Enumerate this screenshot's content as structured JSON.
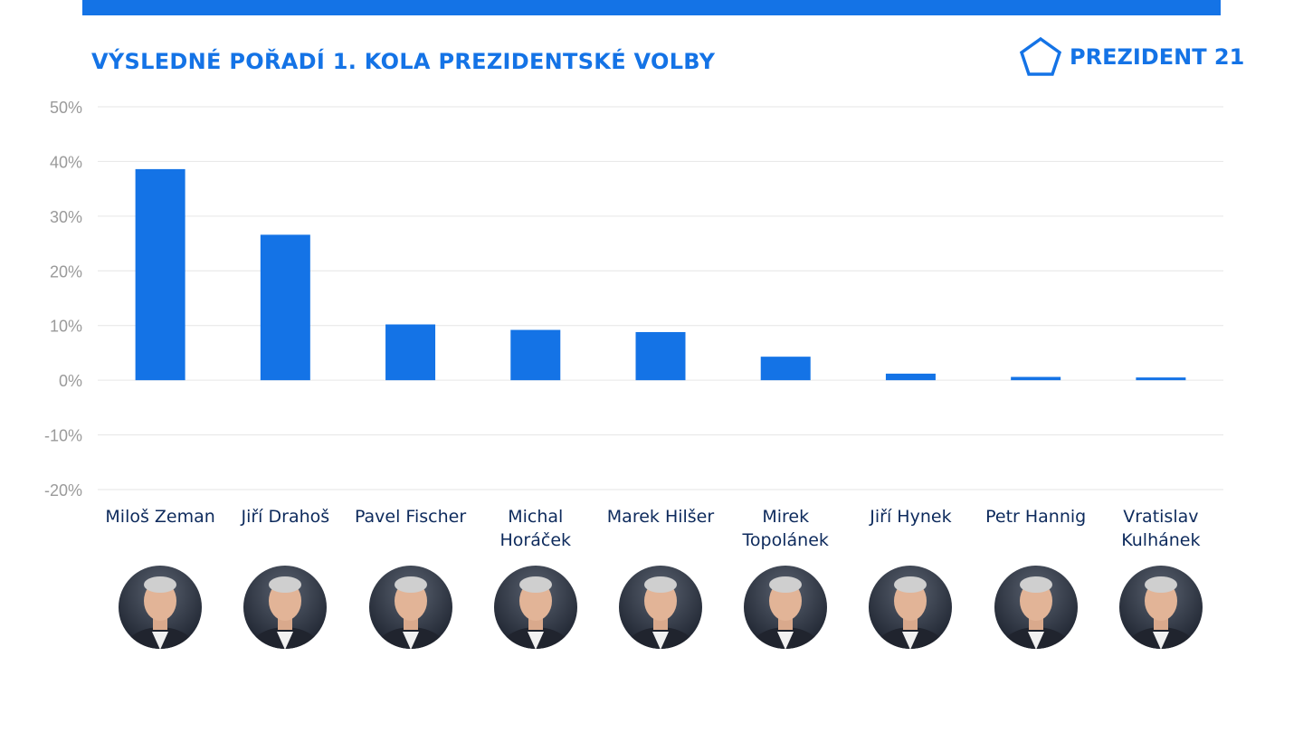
{
  "header": {
    "title": "VÝSLEDNÉ POŘADÍ 1. KOLA PREZIDENTSKÉ VOLBY",
    "logo_text": "PREZIDENT 21",
    "logo_icon": "pentagon-icon"
  },
  "colors": {
    "accent": "#1473e6",
    "name_text": "#0d2a5c",
    "tick_text": "#9a9a9a",
    "grid": "#e6e6e6"
  },
  "chart_data": {
    "type": "bar",
    "title": "VÝSLEDNÉ POŘADÍ 1. KOLA PREZIDENTSKÉ VOLBY",
    "xlabel": "",
    "ylabel": "",
    "categories": [
      "Miloš Zeman",
      "Jiří Drahoš",
      "Pavel Fischer",
      "Michal Horáček",
      "Marek Hilšer",
      "Mirek Topolánek",
      "Jiří Hynek",
      "Petr Hannig",
      "Vratislav Kulhánek"
    ],
    "values": [
      38.6,
      26.6,
      10.2,
      9.2,
      8.8,
      4.3,
      1.2,
      0.6,
      0.5
    ],
    "ylim": [
      -20,
      50
    ],
    "yticks": [
      50,
      40,
      30,
      20,
      10,
      0,
      -10,
      -20
    ],
    "ytick_labels": [
      "50%",
      "40%",
      "30%",
      "20%",
      "10%",
      "0%",
      "-10%",
      "-20%"
    ],
    "grid": true,
    "legend": "none"
  },
  "candidates": [
    {
      "name": "Miloš Zeman",
      "photo": "portrait-photo"
    },
    {
      "name": "Jiří Drahoš",
      "photo": "portrait-photo"
    },
    {
      "name": "Pavel Fischer",
      "photo": "portrait-photo"
    },
    {
      "name": "Michal Horáček",
      "photo": "portrait-photo"
    },
    {
      "name": "Marek Hilšer",
      "photo": "portrait-photo"
    },
    {
      "name": "Mirek Topolánek",
      "photo": "portrait-photo"
    },
    {
      "name": "Jiří Hynek",
      "photo": "portrait-photo"
    },
    {
      "name": "Petr Hannig",
      "photo": "portrait-photo"
    },
    {
      "name": "Vratislav Kulhánek",
      "photo": "portrait-photo"
    }
  ]
}
